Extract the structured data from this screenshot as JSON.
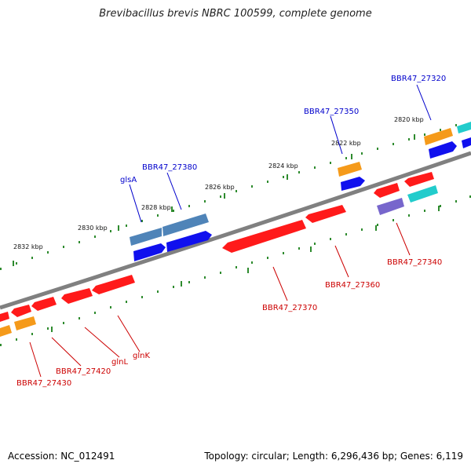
{
  "title": "Brevibacillus brevis NBRC 100599, complete genome",
  "accession": "Accession: NC_012491",
  "stats": "Topology: circular; Length: 6,296,436 bp; Genes: 6,119",
  "colors": {
    "backbone": "#808080",
    "tick": "#2e8b2e",
    "label_blue": "#0000cc",
    "label_red": "#cc0000",
    "red": "#ff1a1a",
    "blue": "#1010ee",
    "steelblue": "#4f84b8",
    "orange": "#f59a1a",
    "cyan": "#22cccc",
    "purple": "#7766cc"
  },
  "ticks": [
    "2820 kbp",
    "2822 kbp",
    "2824 kbp",
    "2826 kbp",
    "2828 kbp",
    "2830 kbp",
    "2832 kbp"
  ],
  "gene_labels_blue": [
    "BBR47_27320",
    "BBR47_27350",
    "BBR47_27380",
    "glsA"
  ],
  "gene_labels_red": [
    "BBR47_27340",
    "BBR47_27360",
    "BBR47_27370",
    "glnK",
    "glnL",
    "BBR47_27420",
    "BBR47_27430"
  ]
}
